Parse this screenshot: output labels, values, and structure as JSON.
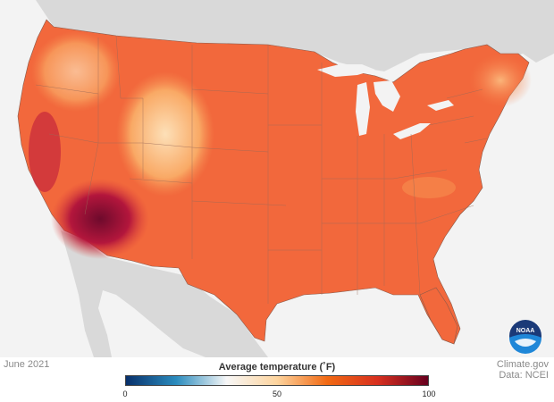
{
  "map": {
    "date": "June 2021",
    "source_site": "Climate.gov",
    "source_data": "Data: NCEI",
    "logo_text": "NOAA"
  },
  "legend": {
    "title": "Average temperature (˚F)",
    "ticks": [
      "0",
      "50",
      "100"
    ],
    "tick_values": [
      0,
      50,
      100
    ],
    "range": [
      0,
      100
    ],
    "colors": [
      "#08306b",
      "#2b8cbe",
      "#f7f7f7",
      "#fdd49e",
      "#f16913",
      "#d7301f",
      "#67001f"
    ]
  },
  "colors": {
    "ocean": "#f3f3f3",
    "land_outside": "#d9d9d9",
    "us_base": "#f2683c",
    "southwest_hot": "#a4123a",
    "mountain_cool": "#fbc28a",
    "border": "#7a5a50"
  }
}
